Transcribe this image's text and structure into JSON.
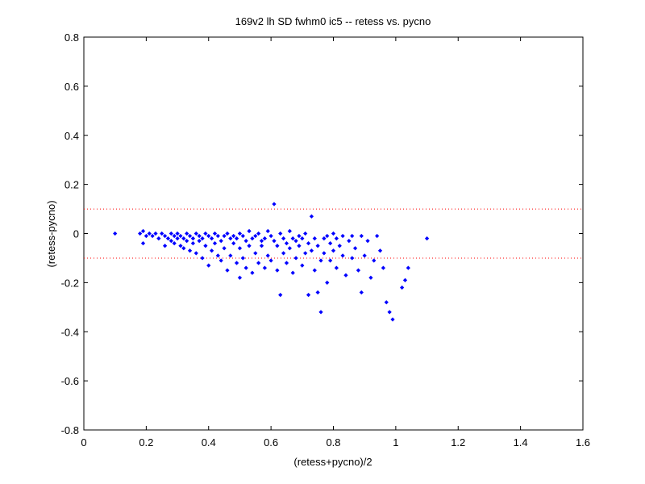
{
  "chart_data": {
    "type": "scatter",
    "title": "169v2 lh SD fwhm0 ic5 -- retess vs. pycno",
    "xlabel": "(retess+pycno)/2",
    "ylabel": "(retess-pycno)",
    "xlim": [
      0,
      1.6
    ],
    "ylim": [
      -0.8,
      0.8
    ],
    "xticks": [
      0,
      0.2,
      0.4,
      0.6,
      0.8,
      1,
      1.2,
      1.4,
      1.6
    ],
    "yticks": [
      -0.8,
      -0.6,
      -0.4,
      -0.2,
      0,
      0.2,
      0.4,
      0.6,
      0.8
    ],
    "grid": false,
    "marker_color": "#0000ff",
    "reference_line_color": "#ff0000",
    "reference_lines_y": [
      0.1,
      -0.1
    ],
    "series": [
      {
        "points": [
          [
            0.1,
            0.0
          ],
          [
            0.18,
            0.0
          ],
          [
            0.19,
            -0.04
          ],
          [
            0.19,
            0.01
          ],
          [
            0.2,
            -0.01
          ],
          [
            0.21,
            0.0
          ],
          [
            0.22,
            -0.01
          ],
          [
            0.23,
            0.0
          ],
          [
            0.24,
            -0.02
          ],
          [
            0.25,
            0.0
          ],
          [
            0.26,
            -0.01
          ],
          [
            0.26,
            -0.05
          ],
          [
            0.27,
            -0.02
          ],
          [
            0.28,
            0.0
          ],
          [
            0.28,
            -0.03
          ],
          [
            0.29,
            -0.01
          ],
          [
            0.29,
            -0.04
          ],
          [
            0.3,
            0.0
          ],
          [
            0.3,
            -0.02
          ],
          [
            0.31,
            -0.01
          ],
          [
            0.31,
            -0.05
          ],
          [
            0.32,
            -0.02
          ],
          [
            0.32,
            -0.06
          ],
          [
            0.33,
            0.0
          ],
          [
            0.33,
            -0.03
          ],
          [
            0.34,
            -0.01
          ],
          [
            0.34,
            -0.07
          ],
          [
            0.35,
            -0.02
          ],
          [
            0.35,
            -0.04
          ],
          [
            0.36,
            0.0
          ],
          [
            0.36,
            -0.08
          ],
          [
            0.37,
            -0.01
          ],
          [
            0.37,
            -0.03
          ],
          [
            0.38,
            -0.02
          ],
          [
            0.38,
            -0.1
          ],
          [
            0.39,
            0.0
          ],
          [
            0.39,
            -0.05
          ],
          [
            0.4,
            -0.01
          ],
          [
            0.4,
            -0.13
          ],
          [
            0.41,
            -0.02
          ],
          [
            0.41,
            -0.07
          ],
          [
            0.42,
            0.0
          ],
          [
            0.42,
            -0.04
          ],
          [
            0.43,
            -0.01
          ],
          [
            0.43,
            -0.09
          ],
          [
            0.44,
            -0.03
          ],
          [
            0.44,
            -0.11
          ],
          [
            0.45,
            -0.01
          ],
          [
            0.45,
            -0.06
          ],
          [
            0.46,
            0.0
          ],
          [
            0.46,
            -0.15
          ],
          [
            0.47,
            -0.02
          ],
          [
            0.47,
            -0.09
          ],
          [
            0.48,
            -0.01
          ],
          [
            0.48,
            -0.04
          ],
          [
            0.49,
            -0.02
          ],
          [
            0.49,
            -0.12
          ],
          [
            0.5,
            0.0
          ],
          [
            0.5,
            -0.06
          ],
          [
            0.5,
            -0.18
          ],
          [
            0.51,
            -0.01
          ],
          [
            0.51,
            -0.1
          ],
          [
            0.52,
            -0.03
          ],
          [
            0.52,
            -0.14
          ],
          [
            0.53,
            0.01
          ],
          [
            0.53,
            -0.05
          ],
          [
            0.54,
            -0.02
          ],
          [
            0.54,
            -0.16
          ],
          [
            0.55,
            -0.01
          ],
          [
            0.55,
            -0.08
          ],
          [
            0.56,
            0.0
          ],
          [
            0.56,
            -0.12
          ],
          [
            0.57,
            -0.03
          ],
          [
            0.57,
            -0.05
          ],
          [
            0.58,
            -0.02
          ],
          [
            0.58,
            -0.14
          ],
          [
            0.59,
            0.01
          ],
          [
            0.59,
            -0.09
          ],
          [
            0.6,
            -0.01
          ],
          [
            0.6,
            -0.11
          ],
          [
            0.61,
            -0.03
          ],
          [
            0.61,
            0.12
          ],
          [
            0.62,
            -0.05
          ],
          [
            0.62,
            -0.15
          ],
          [
            0.63,
            0.0
          ],
          [
            0.63,
            -0.25
          ],
          [
            0.64,
            -0.02
          ],
          [
            0.64,
            -0.08
          ],
          [
            0.65,
            -0.04
          ],
          [
            0.65,
            -0.12
          ],
          [
            0.66,
            0.01
          ],
          [
            0.66,
            -0.06
          ],
          [
            0.67,
            -0.02
          ],
          [
            0.67,
            -0.16
          ],
          [
            0.68,
            -0.03
          ],
          [
            0.68,
            -0.1
          ],
          [
            0.69,
            -0.01
          ],
          [
            0.69,
            -0.05
          ],
          [
            0.7,
            -0.02
          ],
          [
            0.7,
            -0.13
          ],
          [
            0.71,
            0.0
          ],
          [
            0.71,
            -0.08
          ],
          [
            0.72,
            -0.04
          ],
          [
            0.72,
            -0.25
          ],
          [
            0.73,
            0.07
          ],
          [
            0.73,
            -0.07
          ],
          [
            0.74,
            -0.02
          ],
          [
            0.74,
            -0.15
          ],
          [
            0.75,
            -0.05
          ],
          [
            0.75,
            -0.24
          ],
          [
            0.76,
            -0.11
          ],
          [
            0.76,
            -0.32
          ],
          [
            0.77,
            -0.02
          ],
          [
            0.77,
            -0.08
          ],
          [
            0.78,
            -0.01
          ],
          [
            0.78,
            -0.2
          ],
          [
            0.79,
            -0.04
          ],
          [
            0.79,
            -0.11
          ],
          [
            0.8,
            0.0
          ],
          [
            0.8,
            -0.07
          ],
          [
            0.81,
            -0.02
          ],
          [
            0.81,
            -0.14
          ],
          [
            0.82,
            -0.05
          ],
          [
            0.83,
            -0.01
          ],
          [
            0.83,
            -0.09
          ],
          [
            0.84,
            -0.17
          ],
          [
            0.85,
            -0.03
          ],
          [
            0.86,
            -0.01
          ],
          [
            0.86,
            -0.1
          ],
          [
            0.87,
            -0.06
          ],
          [
            0.88,
            -0.15
          ],
          [
            0.89,
            -0.01
          ],
          [
            0.89,
            -0.24
          ],
          [
            0.9,
            -0.09
          ],
          [
            0.91,
            -0.03
          ],
          [
            0.92,
            -0.18
          ],
          [
            0.93,
            -0.11
          ],
          [
            0.94,
            -0.01
          ],
          [
            0.95,
            -0.07
          ],
          [
            0.96,
            -0.14
          ],
          [
            0.97,
            -0.28
          ],
          [
            0.98,
            -0.32
          ],
          [
            0.99,
            -0.35
          ],
          [
            1.02,
            -0.22
          ],
          [
            1.03,
            -0.19
          ],
          [
            1.04,
            -0.14
          ],
          [
            1.1,
            -0.02
          ]
        ]
      }
    ]
  }
}
